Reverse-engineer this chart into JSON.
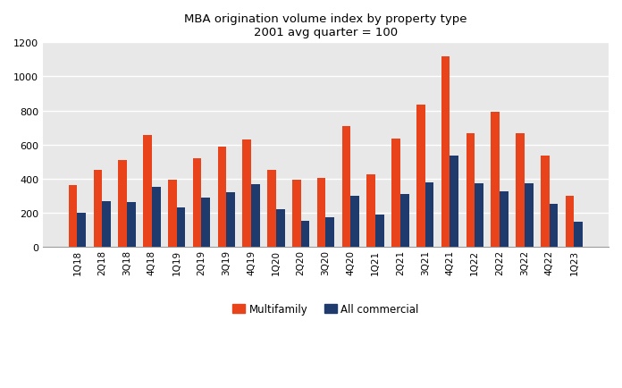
{
  "title_line1": "MBA origination volume index by property type",
  "title_line2": "2001 avg quarter = 100",
  "categories": [
    "1Q18",
    "2Q18",
    "3Q18",
    "4Q18",
    "1Q19",
    "2Q19",
    "3Q19",
    "4Q19",
    "1Q20",
    "2Q20",
    "3Q20",
    "4Q20",
    "1Q21",
    "2Q21",
    "3Q21",
    "4Q21",
    "1Q22",
    "2Q22",
    "3Q22",
    "4Q22",
    "1Q23"
  ],
  "multifamily": [
    360,
    450,
    510,
    655,
    395,
    520,
    590,
    630,
    450,
    395,
    405,
    710,
    425,
    635,
    835,
    1120,
    665,
    790,
    665,
    535,
    300
  ],
  "all_commercial": [
    200,
    265,
    260,
    350,
    230,
    290,
    320,
    365,
    220,
    150,
    170,
    300,
    190,
    310,
    375,
    535,
    370,
    325,
    370,
    250,
    145
  ],
  "multifamily_color": "#E8431A",
  "all_commercial_color": "#1F3B6E",
  "ylim": [
    0,
    1200
  ],
  "yticks": [
    0,
    200,
    400,
    600,
    800,
    1000,
    1200
  ],
  "bar_width": 0.35,
  "legend_labels": [
    "Multifamily",
    "All commercial"
  ],
  "plot_bg_color": "#E8E8E8",
  "grid_color": "#FFFFFF",
  "figure_bg_color": "#FFFFFF"
}
